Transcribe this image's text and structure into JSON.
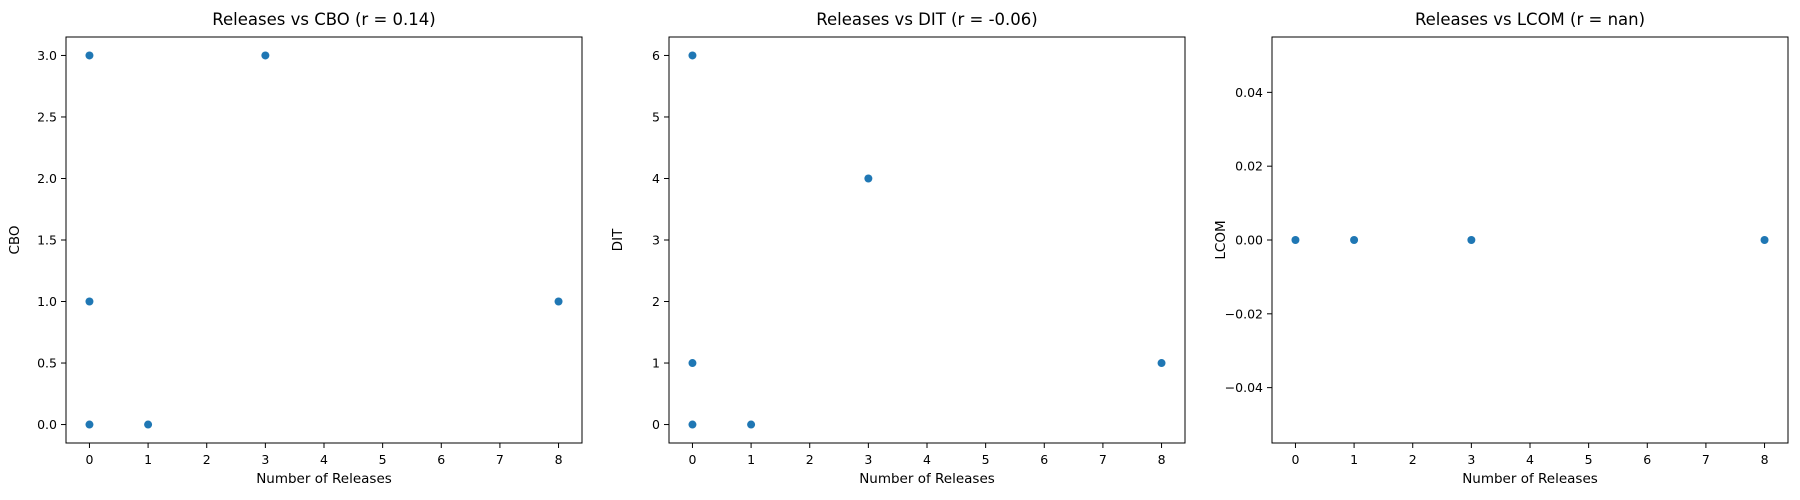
{
  "chart_data": [
    {
      "type": "scatter",
      "title": "Releases vs CBO (r = 0.14)",
      "xlabel": "Number of Releases",
      "ylabel": "CBO",
      "x": [
        0,
        0,
        0,
        1,
        3,
        8
      ],
      "y": [
        3,
        1,
        0,
        0,
        3,
        1
      ],
      "xlim": [
        -0.4,
        8.4
      ],
      "ylim": [
        -0.15,
        3.15
      ],
      "xticks": [
        "0",
        "1",
        "2",
        "3",
        "4",
        "5",
        "6",
        "7",
        "8"
      ],
      "yticks": [
        "0.0",
        "0.5",
        "1.0",
        "1.5",
        "2.0",
        "2.5",
        "3.0"
      ],
      "color": "#1f77b4",
      "grid": false
    },
    {
      "type": "scatter",
      "title": "Releases vs DIT (r = -0.06)",
      "xlabel": "Number of Releases",
      "ylabel": "DIT",
      "x": [
        0,
        0,
        0,
        1,
        3,
        8
      ],
      "y": [
        6,
        1,
        0,
        0,
        4,
        1
      ],
      "xlim": [
        -0.4,
        8.4
      ],
      "ylim": [
        -0.3,
        6.3
      ],
      "xticks": [
        "0",
        "1",
        "2",
        "3",
        "4",
        "5",
        "6",
        "7",
        "8"
      ],
      "yticks": [
        "0",
        "1",
        "2",
        "3",
        "4",
        "5",
        "6"
      ],
      "color": "#1f77b4",
      "grid": false
    },
    {
      "type": "scatter",
      "title": "Releases vs LCOM (r = nan)",
      "xlabel": "Number of Releases",
      "ylabel": "LCOM",
      "x": [
        0,
        1,
        3,
        8
      ],
      "y": [
        0,
        0,
        0,
        0
      ],
      "xlim": [
        -0.4,
        8.4
      ],
      "ylim": [
        -0.055,
        0.055
      ],
      "xticks": [
        "0",
        "1",
        "2",
        "3",
        "4",
        "5",
        "6",
        "7",
        "8"
      ],
      "yticks": [
        "−0.04",
        "−0.02",
        "0.00",
        "0.02",
        "0.04"
      ],
      "color": "#1f77b4",
      "grid": false
    }
  ]
}
